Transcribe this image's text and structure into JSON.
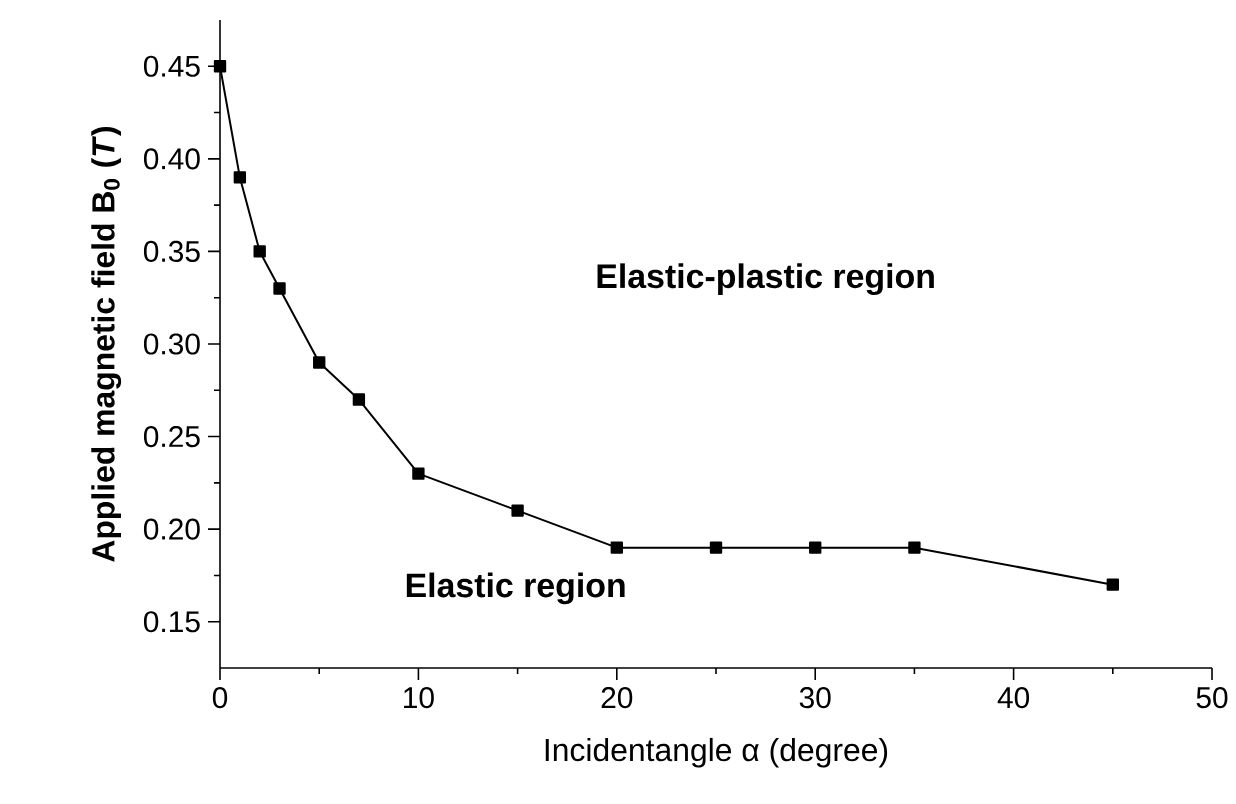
{
  "chart_data": {
    "type": "line",
    "xlabel": "Incidentangle α (degree)",
    "ylabel": "Applied magnetic field B$_{0}$ (*T*)",
    "annotations": [
      "Elastic-plastic region",
      "Elastic region"
    ],
    "x": [
      0,
      1,
      2,
      3,
      5,
      7,
      10,
      15,
      20,
      25,
      30,
      35,
      45
    ],
    "series": [
      {
        "color": "#000000",
        "values": [
          0.45,
          0.39,
          0.35,
          0.33,
          0.29,
          0.27,
          0.23,
          0.21,
          0.19,
          0.19,
          0.19,
          0.19,
          0.17
        ]
      }
    ],
    "xlim": [
      0,
      50
    ],
    "xticks": [
      0,
      10,
      20,
      30,
      40,
      50
    ],
    "ylim": [
      0.125,
      0.475
    ],
    "yticks": [
      {
        "value": 0.15,
        "label": "0.15"
      },
      {
        "value": 0.2,
        "label": "0.20"
      },
      {
        "value": 0.25,
        "label": "0.25"
      },
      {
        "value": 0.3,
        "label": "0.30"
      },
      {
        "value": 0.35,
        "label": "0.35"
      },
      {
        "value": 0.4,
        "label": "0.40"
      },
      {
        "value": 0.45,
        "label": "0.45"
      }
    ],
    "marker": "square",
    "line_style": "solid"
  }
}
